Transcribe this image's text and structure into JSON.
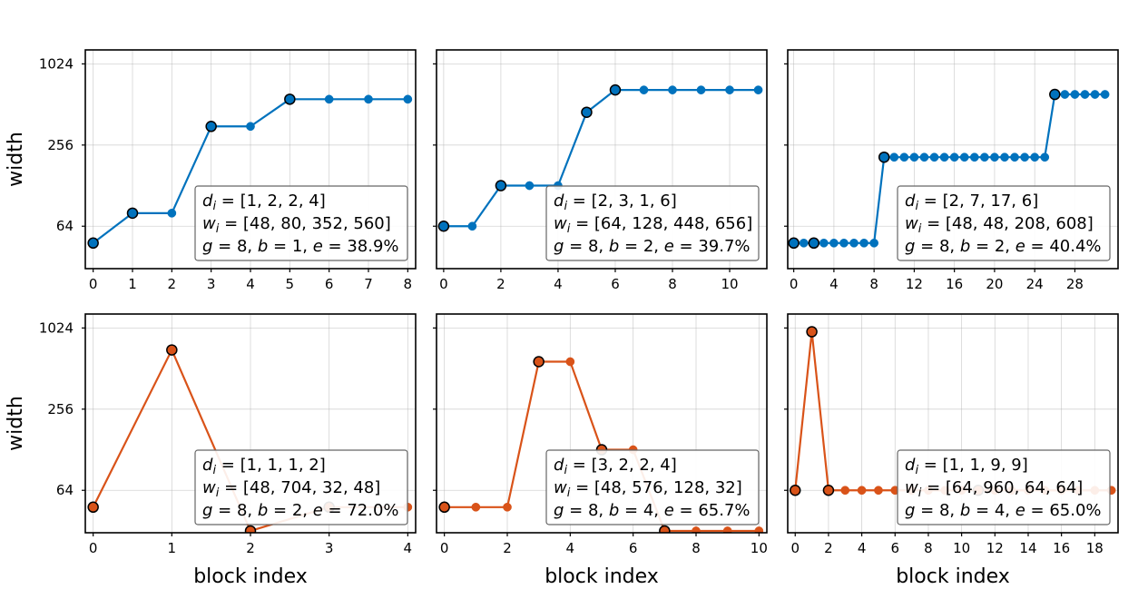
{
  "colors": {
    "blue": "#0072bd",
    "orange": "#d95319",
    "marker_edge": "#000000"
  },
  "chart_data": [
    {
      "type": "line",
      "row": 0,
      "col": 0,
      "color_key": "blue",
      "x": [
        0,
        1,
        2,
        3,
        4,
        5,
        6,
        7,
        8
      ],
      "y": [
        48,
        80,
        80,
        352,
        352,
        560,
        560,
        560,
        560
      ],
      "stage_starts": [
        0,
        1,
        3,
        5
      ],
      "xlim": [
        -0.2,
        8.2
      ],
      "xticks": [
        0,
        1,
        2,
        3,
        4,
        5,
        6,
        7,
        8
      ],
      "ylim": [
        31,
        1300
      ],
      "yscale": "log2",
      "yticks": [
        64,
        256,
        1024
      ],
      "ylabel": "width",
      "xlabel": "",
      "legend": [
        "d_i = [1, 2, 2, 4]",
        "w_i = [48, 80, 352, 560]",
        "g = 8, b = 1, e = 38.9%"
      ]
    },
    {
      "type": "line",
      "row": 0,
      "col": 1,
      "color_key": "blue",
      "x": [
        0,
        1,
        2,
        3,
        4,
        5,
        6,
        7,
        8,
        9,
        10,
        11
      ],
      "y": [
        64,
        64,
        128,
        128,
        128,
        448,
        656,
        656,
        656,
        656,
        656,
        656
      ],
      "stage_starts": [
        0,
        2,
        5,
        6
      ],
      "xlim": [
        -0.25,
        11.3
      ],
      "xticks": [
        0,
        2,
        4,
        6,
        8,
        10
      ],
      "ylim": [
        31,
        1300
      ],
      "yscale": "log2",
      "yticks": [
        64,
        256,
        1024
      ],
      "ylabel": "",
      "xlabel": "",
      "legend": [
        "d_i = [2, 3, 1, 6]",
        "w_i = [64, 128, 448, 656]",
        "g = 8, b = 2, e = 39.7%"
      ]
    },
    {
      "type": "line",
      "row": 0,
      "col": 2,
      "color_key": "blue",
      "x": [
        0,
        1,
        2,
        3,
        4,
        5,
        6,
        7,
        8,
        9,
        10,
        11,
        12,
        13,
        14,
        15,
        16,
        17,
        18,
        19,
        20,
        21,
        22,
        23,
        24,
        25,
        26,
        27,
        28,
        29,
        30,
        31
      ],
      "y": [
        48,
        48,
        48,
        48,
        48,
        48,
        48,
        48,
        48,
        208,
        208,
        208,
        208,
        208,
        208,
        208,
        208,
        208,
        208,
        208,
        208,
        208,
        208,
        208,
        208,
        208,
        608,
        608,
        608,
        608,
        608,
        608
      ],
      "stage_starts": [
        0,
        2,
        9,
        26
      ],
      "xlim": [
        -0.6,
        32.3
      ],
      "xticks": [
        0,
        4,
        8,
        12,
        16,
        20,
        24,
        28
      ],
      "ylim": [
        31,
        1300
      ],
      "yscale": "log2",
      "yticks": [
        64,
        256,
        1024
      ],
      "ylabel": "",
      "xlabel": "",
      "legend": [
        "d_i = [2, 7, 17, 6]",
        "w_i = [48, 48, 208, 608]",
        "g = 8, b = 2, e = 40.4%"
      ]
    },
    {
      "type": "line",
      "row": 1,
      "col": 0,
      "color_key": "orange",
      "x": [
        0,
        1,
        2,
        3,
        4
      ],
      "y": [
        48,
        704,
        32,
        48,
        48
      ],
      "stage_starts": [
        0,
        1,
        2,
        3
      ],
      "xlim": [
        -0.1,
        4.1
      ],
      "xticks": [
        0,
        1,
        2,
        3,
        4
      ],
      "ylim": [
        31,
        1300
      ],
      "yscale": "log2",
      "yticks": [
        64,
        256,
        1024
      ],
      "ylabel": "width",
      "xlabel": "block index",
      "legend": [
        "d_i = [1, 1, 1, 2]",
        "w_i = [48, 704, 32, 48]",
        "g = 8, b = 2, e = 72.0%"
      ]
    },
    {
      "type": "line",
      "row": 1,
      "col": 1,
      "color_key": "orange",
      "x": [
        0,
        1,
        2,
        3,
        4,
        5,
        6,
        7,
        8,
        9,
        10
      ],
      "y": [
        48,
        48,
        48,
        576,
        576,
        128,
        128,
        32,
        32,
        32,
        32
      ],
      "stage_starts": [
        0,
        3,
        5,
        7
      ],
      "xlim": [
        -0.25,
        10.25
      ],
      "xticks": [
        0,
        2,
        4,
        6,
        8,
        10
      ],
      "ylim": [
        31,
        1300
      ],
      "yscale": "log2",
      "yticks": [
        64,
        256,
        1024
      ],
      "ylabel": "",
      "xlabel": "block index",
      "legend": [
        "d_i = [3, 2, 2, 4]",
        "w_i = [48, 576, 128, 32]",
        "g = 8, b = 4, e = 65.7%"
      ]
    },
    {
      "type": "line",
      "row": 1,
      "col": 2,
      "color_key": "orange",
      "x": [
        0,
        1,
        2,
        3,
        4,
        5,
        6,
        7,
        8,
        9,
        10,
        11,
        12,
        13,
        14,
        15,
        16,
        17,
        18,
        19
      ],
      "y": [
        64,
        960,
        64,
        64,
        64,
        64,
        64,
        64,
        64,
        64,
        64,
        64,
        64,
        64,
        64,
        64,
        64,
        64,
        64,
        64
      ],
      "stage_starts": [
        0,
        1,
        2,
        11
      ],
      "xlim": [
        -0.45,
        19.4
      ],
      "xticks": [
        0,
        2,
        4,
        6,
        8,
        10,
        12,
        14,
        16,
        18
      ],
      "ylim": [
        31,
        1300
      ],
      "yscale": "log2",
      "yticks": [
        64,
        256,
        1024
      ],
      "ylabel": "",
      "xlabel": "block index",
      "legend": [
        "d_i = [1, 1, 9, 9]",
        "w_i = [64, 960, 64, 64]",
        "g = 8, b = 4, e = 65.0%"
      ]
    }
  ]
}
